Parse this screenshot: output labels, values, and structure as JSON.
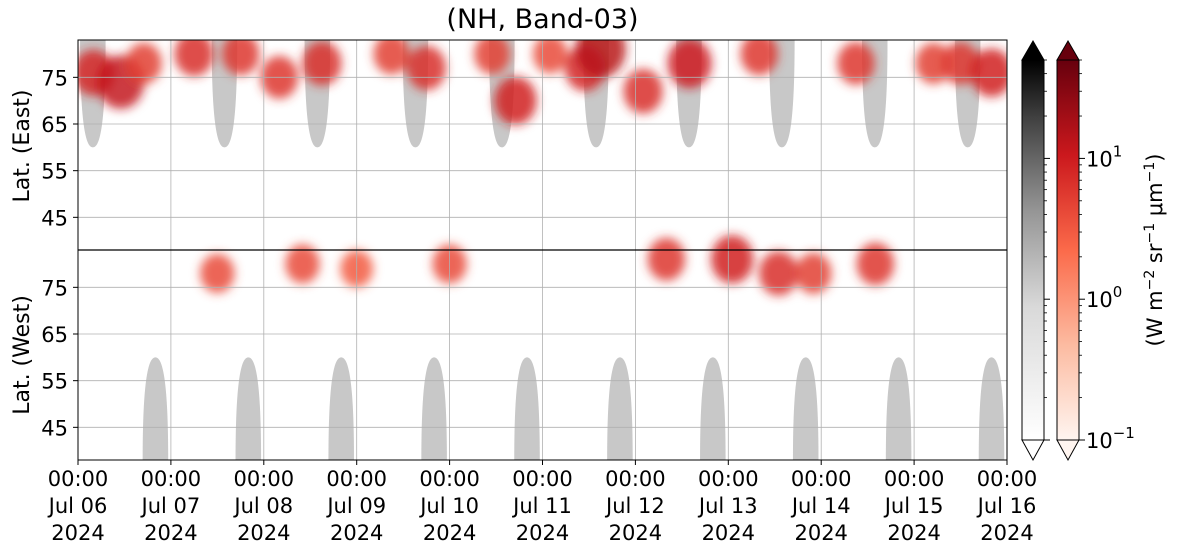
{
  "chart_data": {
    "type": "heatmap",
    "title": "(NH, Band-03)",
    "ylabel_top": "Lat. (East)",
    "ylabel_bottom": "Lat. (West)",
    "y_ticks_top": [
      "45",
      "55",
      "65",
      "75"
    ],
    "y_ticks_bottom": [
      "75",
      "65",
      "55",
      "45"
    ],
    "y_tick_values_top": [
      45,
      55,
      65,
      75
    ],
    "y_tick_values_bottom": [
      75,
      65,
      55,
      45
    ],
    "ylim_top": [
      38,
      83
    ],
    "ylim_bottom": [
      83,
      38
    ],
    "x_ticks": [
      {
        "time": "00:00",
        "date": "Jul 06",
        "year": "2024"
      },
      {
        "time": "00:00",
        "date": "Jul 07",
        "year": "2024"
      },
      {
        "time": "00:00",
        "date": "Jul 08",
        "year": "2024"
      },
      {
        "time": "00:00",
        "date": "Jul 09",
        "year": "2024"
      },
      {
        "time": "00:00",
        "date": "Jul 10",
        "year": "2024"
      },
      {
        "time": "00:00",
        "date": "Jul 11",
        "year": "2024"
      },
      {
        "time": "00:00",
        "date": "Jul 12",
        "year": "2024"
      },
      {
        "time": "00:00",
        "date": "Jul 13",
        "year": "2024"
      },
      {
        "time": "00:00",
        "date": "Jul 14",
        "year": "2024"
      },
      {
        "time": "00:00",
        "date": "Jul 15",
        "year": "2024"
      },
      {
        "time": "00:00",
        "date": "Jul 16",
        "year": "2024"
      }
    ],
    "xlim": [
      "2024-07-06 00:00",
      "2024-07-16 00:00"
    ],
    "grid": true,
    "colorbar": {
      "label_parts": {
        "a": "(W m",
        "b": "−2",
        "c": " sr",
        "d": "−1",
        "e": " μm",
        "f": "−1",
        "g": ")"
      },
      "scale": "log",
      "range": [
        0.1,
        50
      ],
      "ticks": [
        {
          "base": "10",
          "exp": "−1",
          "value": 0.1
        },
        {
          "base": "10",
          "exp": "0",
          "value": 1
        },
        {
          "base": "10",
          "exp": "1",
          "value": 10
        }
      ],
      "colormaps": [
        "Greys",
        "Reds"
      ],
      "extend": "both"
    },
    "night_regions_top": [
      {
        "center": "2024-07-06 03:50",
        "halfwidth_hours": 3.3,
        "lat_edge": 60
      },
      {
        "center": "2024-07-07 13:50",
        "halfwidth_hours": 3.3,
        "lat_edge": 60
      },
      {
        "center": "2024-07-08 13:50",
        "halfwidth_hours": 3.3,
        "lat_edge": 60
      },
      {
        "center": "2024-07-09 15:10",
        "halfwidth_hours": 3.3,
        "lat_edge": 60
      },
      {
        "center": "2024-07-10 13:30",
        "halfwidth_hours": 3.3,
        "lat_edge": 60
      },
      {
        "center": "2024-07-11 13:50",
        "halfwidth_hours": 3.3,
        "lat_edge": 60
      },
      {
        "center": "2024-07-12 13:50",
        "halfwidth_hours": 3.3,
        "lat_edge": 60
      },
      {
        "center": "2024-07-13 13:50",
        "halfwidth_hours": 3.3,
        "lat_edge": 60
      },
      {
        "center": "2024-07-14 13:50",
        "halfwidth_hours": 3.3,
        "lat_edge": 60
      },
      {
        "center": "2024-07-15 13:50",
        "halfwidth_hours": 3.3,
        "lat_edge": 60
      }
    ],
    "night_regions_bottom": [
      {
        "center": "2024-07-06 20:00",
        "halfwidth_hours": 3.3,
        "lat_edge": 60
      },
      {
        "center": "2024-07-07 20:00",
        "halfwidth_hours": 3.3,
        "lat_edge": 60
      },
      {
        "center": "2024-07-08 20:00",
        "halfwidth_hours": 3.3,
        "lat_edge": 60
      },
      {
        "center": "2024-07-09 20:00",
        "halfwidth_hours": 3.3,
        "lat_edge": 60
      },
      {
        "center": "2024-07-10 20:00",
        "halfwidth_hours": 3.3,
        "lat_edge": 60
      },
      {
        "center": "2024-07-11 20:00",
        "halfwidth_hours": 3.3,
        "lat_edge": 60
      },
      {
        "center": "2024-07-12 20:00",
        "halfwidth_hours": 3.3,
        "lat_edge": 60
      },
      {
        "center": "2024-07-13 20:00",
        "halfwidth_hours": 3.3,
        "lat_edge": 60
      },
      {
        "center": "2024-07-14 20:00",
        "halfwidth_hours": 3.3,
        "lat_edge": 60
      },
      {
        "center": "2024-07-15 20:00",
        "halfwidth_hours": 3.3,
        "lat_edge": 60
      }
    ],
    "radiance_blobs": [
      {
        "time": "2024-07-06 04:00",
        "lat": 76,
        "hemisphere": "east",
        "value": 8
      },
      {
        "time": "2024-07-06 11:00",
        "lat": 74,
        "hemisphere": "east",
        "value": 12
      },
      {
        "time": "2024-07-06 17:00",
        "lat": 78,
        "hemisphere": "east",
        "value": 5
      },
      {
        "time": "2024-07-07 06:00",
        "lat": 80,
        "hemisphere": "east",
        "value": 7
      },
      {
        "time": "2024-07-07 12:00",
        "lat": 78,
        "hemisphere": "west",
        "value": 4
      },
      {
        "time": "2024-07-07 18:00",
        "lat": 80,
        "hemisphere": "east",
        "value": 6
      },
      {
        "time": "2024-07-08 04:00",
        "lat": 75,
        "hemisphere": "east",
        "value": 6
      },
      {
        "time": "2024-07-08 10:00",
        "lat": 80,
        "hemisphere": "west",
        "value": 4
      },
      {
        "time": "2024-07-08 15:00",
        "lat": 78,
        "hemisphere": "east",
        "value": 7
      },
      {
        "time": "2024-07-09 00:00",
        "lat": 79,
        "hemisphere": "west",
        "value": 3
      },
      {
        "time": "2024-07-09 09:00",
        "lat": 80,
        "hemisphere": "east",
        "value": 5
      },
      {
        "time": "2024-07-09 18:00",
        "lat": 77,
        "hemisphere": "east",
        "value": 7
      },
      {
        "time": "2024-07-10 00:00",
        "lat": 80,
        "hemisphere": "west",
        "value": 4
      },
      {
        "time": "2024-07-10 11:00",
        "lat": 80,
        "hemisphere": "east",
        "value": 5
      },
      {
        "time": "2024-07-10 17:00",
        "lat": 70,
        "hemisphere": "east",
        "value": 9
      },
      {
        "time": "2024-07-11 02:00",
        "lat": 80,
        "hemisphere": "east",
        "value": 4
      },
      {
        "time": "2024-07-11 11:00",
        "lat": 77,
        "hemisphere": "east",
        "value": 8
      },
      {
        "time": "2024-07-11 15:00",
        "lat": 81,
        "hemisphere": "east",
        "value": 14
      },
      {
        "time": "2024-07-12 02:00",
        "lat": 72,
        "hemisphere": "east",
        "value": 7
      },
      {
        "time": "2024-07-12 08:00",
        "lat": 81,
        "hemisphere": "west",
        "value": 6
      },
      {
        "time": "2024-07-12 14:00",
        "lat": 78,
        "hemisphere": "east",
        "value": 10
      },
      {
        "time": "2024-07-13 01:00",
        "lat": 81,
        "hemisphere": "west",
        "value": 9
      },
      {
        "time": "2024-07-13 08:00",
        "lat": 80,
        "hemisphere": "east",
        "value": 6
      },
      {
        "time": "2024-07-13 13:00",
        "lat": 78,
        "hemisphere": "west",
        "value": 7
      },
      {
        "time": "2024-07-13 22:00",
        "lat": 78,
        "hemisphere": "west",
        "value": 5
      },
      {
        "time": "2024-07-14 09:00",
        "lat": 78,
        "hemisphere": "east",
        "value": 6
      },
      {
        "time": "2024-07-14 14:00",
        "lat": 80,
        "hemisphere": "west",
        "value": 6
      },
      {
        "time": "2024-07-15 05:00",
        "lat": 78,
        "hemisphere": "east",
        "value": 5
      },
      {
        "time": "2024-07-15 12:00",
        "lat": 78,
        "hemisphere": "east",
        "value": 6
      },
      {
        "time": "2024-07-15 20:00",
        "lat": 76,
        "hemisphere": "east",
        "value": 9
      }
    ]
  },
  "colors": {
    "night": "#c8c8c8",
    "grid": "#b0b0b0",
    "equator_line": "#000000",
    "reds_low": "#fff5f0",
    "reds_mid": "#fc8d6a",
    "reds_high": "#cb181d",
    "reds_max": "#67000d",
    "greys_max": "#000000"
  }
}
